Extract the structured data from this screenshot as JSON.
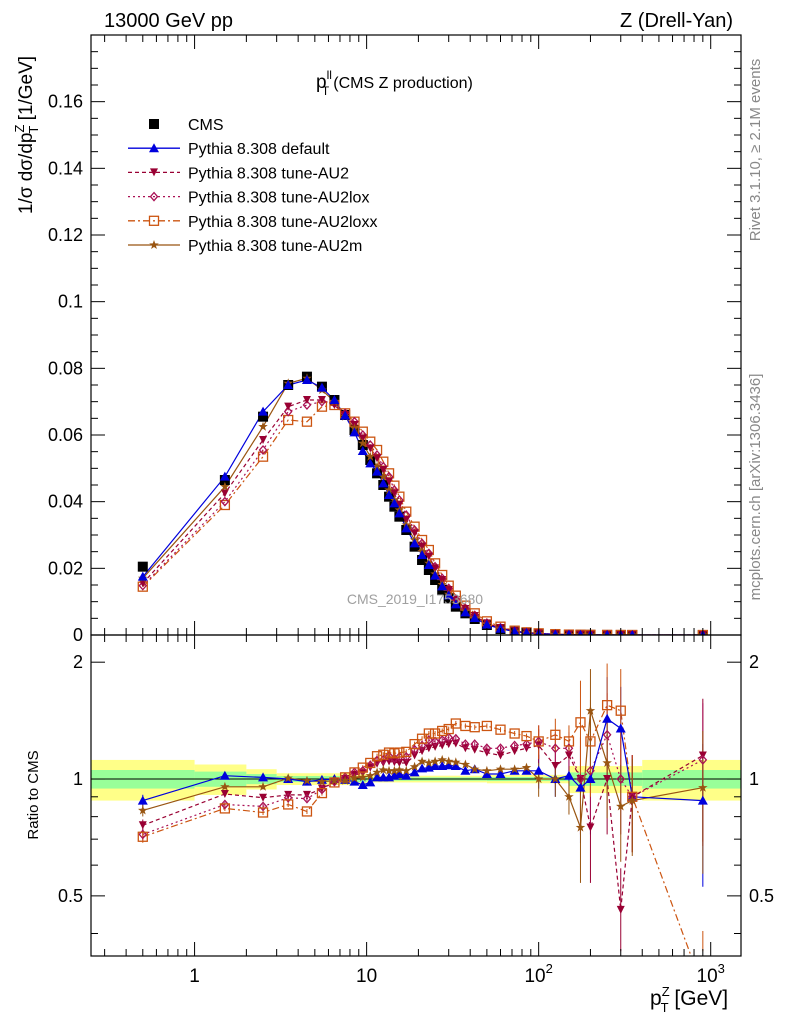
{
  "header": {
    "left": "13000 GeV pp",
    "right": "Z (Drell-Yan)"
  },
  "side_labels": {
    "rivet": "Rivet 3.1.10, ≥ 2.1M events",
    "mcplots": "mcplots.cern.ch [arXiv:1306.3436]"
  },
  "watermark": "CMS_2019_I1753680",
  "plot_title": {
    "main": "p",
    "sup": "ll",
    "sub": "T",
    "rest": "(CMS Z production)"
  },
  "colors": {
    "data": "#000000",
    "default": "#0000dd",
    "au2": "#990033",
    "au2lox": "#aa1155",
    "au2loxx": "#cc5511",
    "au2m": "#995511",
    "band_inner": "#99ff99",
    "band_outer": "#ffff88"
  },
  "chart_data": [
    {
      "type": "scatter",
      "panel": "main",
      "xscale": "log",
      "xlim": [
        0.25,
        1500
      ],
      "ylim": [
        0,
        0.18
      ],
      "ylabel": "1/σ dσ/dp_T^Z [1/GeV]",
      "yticks": [
        "0",
        "0.02",
        "0.04",
        "0.06",
        "0.08",
        "0.1",
        "0.12",
        "0.14",
        "0.16"
      ],
      "x": [
        0.5,
        1.5,
        2.5,
        3.5,
        4.5,
        5.5,
        6.5,
        7.5,
        8.5,
        9.5,
        10.5,
        11.5,
        12.5,
        13.5,
        14.5,
        15.5,
        17,
        19,
        21,
        23,
        25,
        27.5,
        30,
        33,
        37.5,
        42.5,
        50,
        60,
        72.5,
        85,
        100,
        125,
        150,
        175,
        200,
        250,
        300,
        350,
        900
      ],
      "legend": [
        "CMS",
        "Pythia 8.308 default",
        "Pythia 8.308 tune-AU2",
        "Pythia 8.308 tune-AU2lox",
        "Pythia 8.308 tune-AU2loxx",
        "Pythia 8.308 tune-AU2m"
      ],
      "series": [
        {
          "name": "CMS",
          "key": "data",
          "values": [
            0.0205,
            0.0465,
            0.0655,
            0.075,
            0.0775,
            0.0745,
            0.0705,
            0.066,
            0.0615,
            0.057,
            0.0525,
            0.0485,
            0.045,
            0.0415,
            0.0385,
            0.0355,
            0.0315,
            0.0265,
            0.0225,
            0.0195,
            0.0165,
            0.0135,
            0.011,
            0.0085,
            0.0065,
            0.0048,
            0.003,
            0.0018,
            0.001,
            0.0006,
            0.0004,
            0.0002,
            0.0001,
            6e-05,
            4e-05,
            2e-05,
            1e-05,
            6e-06,
            3e-07
          ]
        },
        {
          "name": "Pythia 8.308 default",
          "key": "default",
          "values": [
            0.0175,
            0.0475,
            0.067,
            0.075,
            0.0765,
            0.0742,
            0.0705,
            0.0658,
            0.0608,
            0.0552,
            0.0515,
            0.049,
            0.0455,
            0.042,
            0.0395,
            0.0365,
            0.032,
            0.0275,
            0.024,
            0.021,
            0.0178,
            0.0146,
            0.0119,
            0.0092,
            0.0068,
            0.0051,
            0.0031,
            0.00186,
            0.00105,
            0.00063,
            0.00042,
            0.0002,
            0.000102,
            5.6e-05,
            4e-05,
            2.8e-05,
            1.35e-05,
            5.4e-06,
            3e-07
          ]
        },
        {
          "name": "Pythia 8.308 tune-AU2",
          "key": "au2",
          "values": [
            0.0155,
            0.0425,
            0.0585,
            0.0685,
            0.0705,
            0.0705,
            0.069,
            0.066,
            0.063,
            0.059,
            0.056,
            0.053,
            0.0495,
            0.046,
            0.0425,
            0.039,
            0.0345,
            0.0305,
            0.0265,
            0.0235,
            0.02,
            0.0165,
            0.0135,
            0.0105,
            0.0078,
            0.0057,
            0.0035,
            0.0021,
            0.00118,
            0.00072,
            0.0005,
            0.00022,
            0.000115,
            6e-05,
            3e-05,
            2e-05,
            4.6e-06,
            5.4e-06,
            3.5e-07
          ]
        },
        {
          "name": "Pythia 8.308 tune-AU2lox",
          "key": "au2lox",
          "values": [
            0.0148,
            0.04,
            0.0555,
            0.067,
            0.069,
            0.07,
            0.0695,
            0.0665,
            0.064,
            0.06,
            0.057,
            0.054,
            0.0505,
            0.0475,
            0.0435,
            0.0405,
            0.036,
            0.0315,
            0.0275,
            0.0245,
            0.0205,
            0.017,
            0.014,
            0.0108,
            0.008,
            0.0059,
            0.0036,
            0.0022,
            0.00122,
            0.00074,
            0.0005,
            0.00024,
            0.00012,
            6.2e-05,
            4.2e-05,
            2.6e-05,
            1.2e-05,
            5.4e-06,
            3.5e-07
          ]
        },
        {
          "name": "Pythia 8.308 tune-AU2loxx",
          "key": "au2loxx",
          "values": [
            0.0145,
            0.039,
            0.0535,
            0.0645,
            0.064,
            0.0685,
            0.069,
            0.0665,
            0.064,
            0.061,
            0.058,
            0.0555,
            0.052,
            0.0485,
            0.0448,
            0.0415,
            0.037,
            0.0325,
            0.0285,
            0.0255,
            0.0215,
            0.018,
            0.0148,
            0.0118,
            0.0088,
            0.0065,
            0.0041,
            0.0025,
            0.0013,
            0.0008,
            0.0005,
            0.00026,
            0.000125,
            8.5e-05,
            5e-05,
            3.1e-05,
            1.5e-05,
            5.4e-06,
            9e-08
          ]
        },
        {
          "name": "Pythia 8.308 tune-AU2m",
          "key": "au2m",
          "values": [
            0.017,
            0.0445,
            0.0625,
            0.0755,
            0.077,
            0.0735,
            0.07,
            0.0655,
            0.062,
            0.0575,
            0.0535,
            0.0505,
            0.0475,
            0.0435,
            0.0405,
            0.0375,
            0.033,
            0.0285,
            0.025,
            0.0215,
            0.0183,
            0.0151,
            0.0122,
            0.0094,
            0.0071,
            0.0051,
            0.0032,
            0.0019,
            0.00106,
            0.00064,
            0.0004,
            0.0002,
            9e-05,
            3.6e-05,
            3e-05,
            1e-05,
            5.5e-06,
            4.5e-06,
            3e-07
          ]
        }
      ]
    },
    {
      "type": "scatter",
      "panel": "ratio",
      "xscale": "log",
      "xlim": [
        0.25,
        1500
      ],
      "ylim": [
        0.35,
        2.35
      ],
      "xlabel": "p_T^Z [GeV]",
      "ylabel": "Ratio to CMS",
      "yticks": [
        "0.5",
        "1",
        "2"
      ],
      "xticks": [
        "1",
        "10",
        "10^2",
        "10^3"
      ],
      "x": [
        0.5,
        1.5,
        2.5,
        3.5,
        4.5,
        5.5,
        6.5,
        7.5,
        8.5,
        9.5,
        10.5,
        11.5,
        12.5,
        13.5,
        14.5,
        15.5,
        17,
        19,
        21,
        23,
        25,
        27.5,
        30,
        33,
        37.5,
        42.5,
        50,
        60,
        72.5,
        85,
        100,
        125,
        150,
        175,
        200,
        250,
        300,
        350,
        900
      ],
      "band": [
        {
          "x0": 0.25,
          "x1": 1,
          "inner": 0.055,
          "outer": 0.12
        },
        {
          "x0": 1,
          "x1": 2,
          "inner": 0.045,
          "outer": 0.09
        },
        {
          "x0": 2,
          "x1": 3,
          "inner": 0.03,
          "outer": 0.06
        },
        {
          "x0": 3,
          "x1": 10,
          "inner": 0.018,
          "outer": 0.035
        },
        {
          "x0": 10,
          "x1": 50,
          "inner": 0.01,
          "outer": 0.02
        },
        {
          "x0": 50,
          "x1": 150,
          "inner": 0.012,
          "outer": 0.025
        },
        {
          "x0": 150,
          "x1": 400,
          "inner": 0.04,
          "outer": 0.08
        },
        {
          "x0": 400,
          "x1": 1500,
          "inner": 0.055,
          "outer": 0.12
        }
      ],
      "series": [
        {
          "name": "Pythia 8.308 default",
          "key": "default",
          "values": [
            0.88,
            1.02,
            1.01,
            1.0,
            0.985,
            0.995,
            1.0,
            0.995,
            0.985,
            0.965,
            0.98,
            1.01,
            1.01,
            1.01,
            1.02,
            1.03,
            1.02,
            1.04,
            1.065,
            1.07,
            1.08,
            1.08,
            1.085,
            1.08,
            1.05,
            1.06,
            1.03,
            1.03,
            1.05,
            1.05,
            1.05,
            1.0,
            1.02,
            0.95,
            1.0,
            1.43,
            1.35,
            0.9,
            0.88
          ]
        },
        {
          "name": "Pythia 8.308 tune-AU2",
          "key": "au2",
          "values": [
            0.76,
            0.915,
            0.895,
            0.91,
            0.91,
            0.945,
            0.985,
            1.0,
            1.025,
            1.035,
            1.07,
            1.095,
            1.1,
            1.11,
            1.105,
            1.1,
            1.1,
            1.15,
            1.18,
            1.2,
            1.21,
            1.22,
            1.23,
            1.235,
            1.2,
            1.19,
            1.17,
            1.15,
            1.18,
            1.2,
            1.22,
            1.08,
            1.15,
            1.0,
            0.75,
            1.0,
            0.46,
            0.9,
            1.15
          ]
        },
        {
          "name": "Pythia 8.308 tune-AU2lox",
          "key": "au2lox",
          "values": [
            0.72,
            0.86,
            0.85,
            0.895,
            0.89,
            0.94,
            0.985,
            1.01,
            1.04,
            1.05,
            1.085,
            1.115,
            1.12,
            1.145,
            1.13,
            1.14,
            1.14,
            1.19,
            1.22,
            1.26,
            1.25,
            1.26,
            1.28,
            1.27,
            1.23,
            1.23,
            1.2,
            1.2,
            1.22,
            1.23,
            1.25,
            1.2,
            1.2,
            1.0,
            1.05,
            1.3,
            1.0,
            0.9,
            1.12
          ]
        },
        {
          "name": "Pythia 8.308 tune-AU2loxx",
          "key": "au2loxx",
          "values": [
            0.71,
            0.84,
            0.82,
            0.86,
            0.825,
            0.92,
            0.98,
            1.01,
            1.04,
            1.07,
            1.1,
            1.145,
            1.155,
            1.17,
            1.165,
            1.17,
            1.175,
            1.23,
            1.27,
            1.31,
            1.31,
            1.33,
            1.345,
            1.39,
            1.37,
            1.36,
            1.37,
            1.34,
            1.31,
            1.29,
            1.25,
            1.3,
            1.25,
            1.4,
            1.25,
            1.55,
            1.5,
            0.9,
            0.29
          ]
        },
        {
          "name": "Pythia 8.308 tune-AU2m",
          "key": "au2m",
          "values": [
            0.83,
            0.955,
            0.955,
            1.005,
            0.99,
            0.985,
            0.99,
            0.99,
            1.005,
            1.01,
            1.02,
            1.04,
            1.055,
            1.05,
            1.05,
            1.055,
            1.05,
            1.075,
            1.11,
            1.1,
            1.11,
            1.12,
            1.11,
            1.105,
            1.09,
            1.06,
            1.05,
            1.06,
            1.06,
            1.07,
            1.0,
            1.0,
            0.9,
            0.75,
            1.5,
            1.1,
            0.85,
            0.88,
            0.95
          ]
        }
      ]
    }
  ]
}
